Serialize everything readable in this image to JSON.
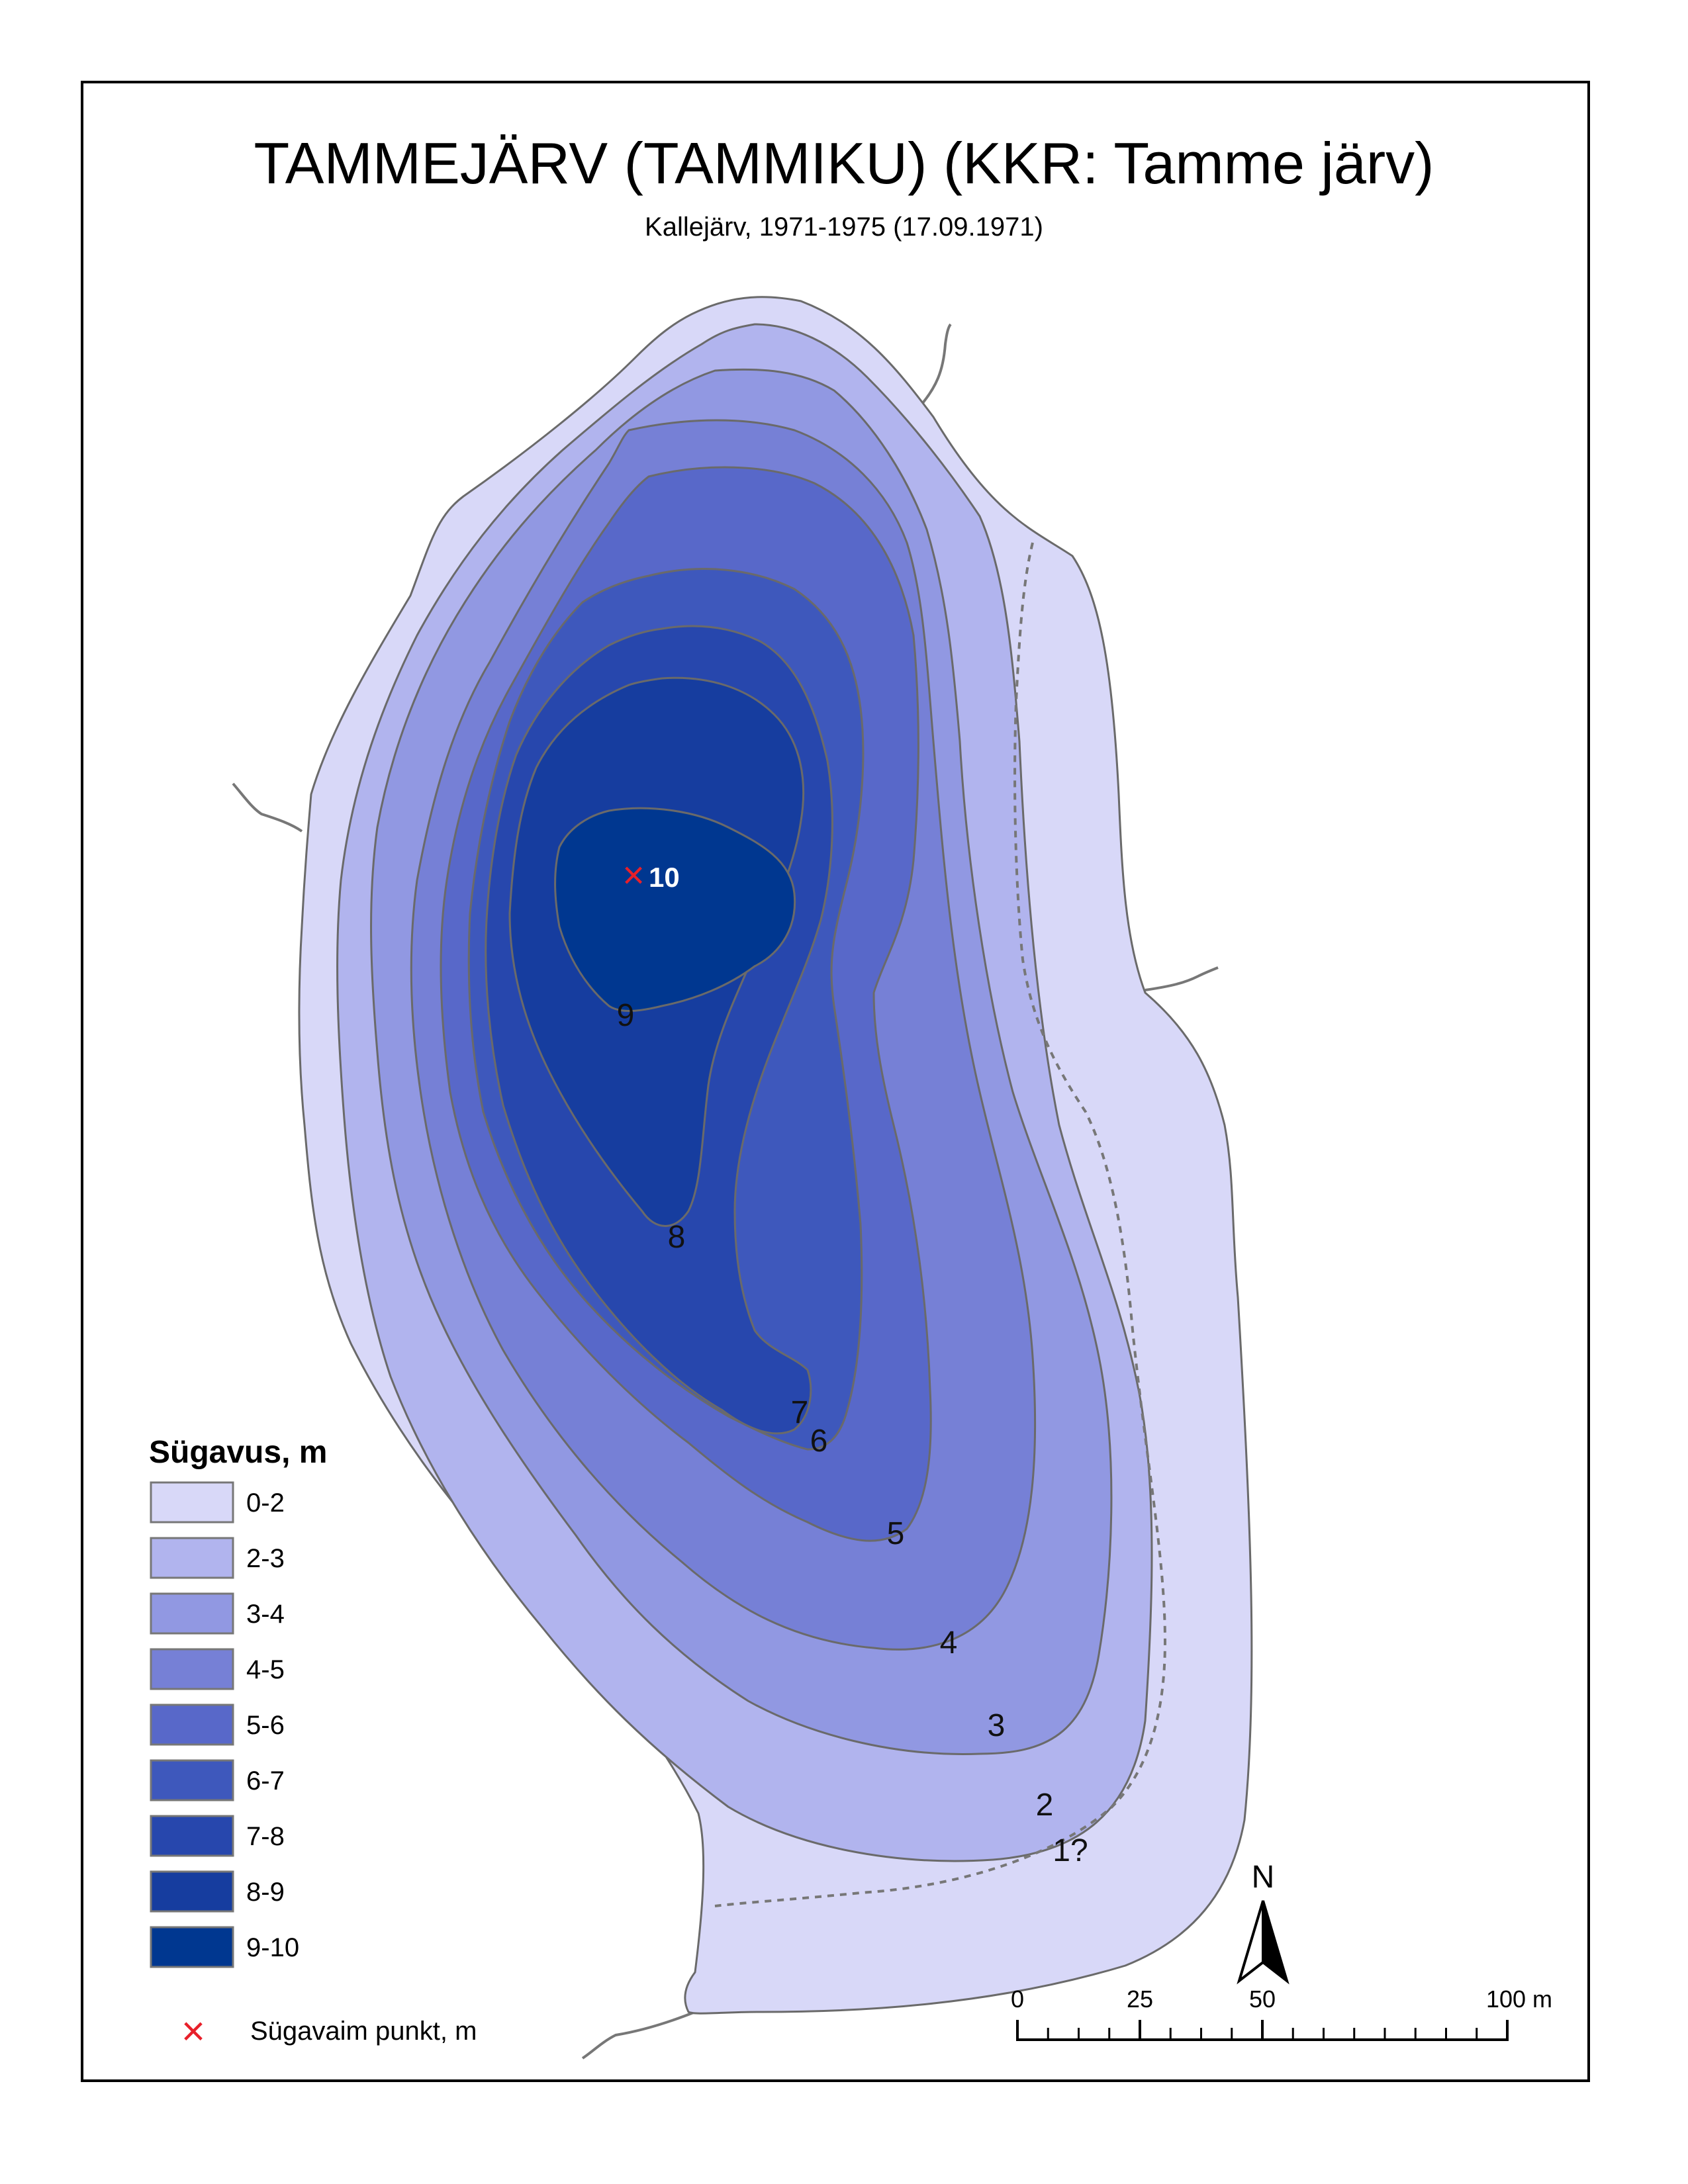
{
  "title": "TAMMEJÄRV (TAMMIKU) (KKR: Tamme järv)",
  "subtitle": "Kallejärv, 1971-1975 (17.09.1971)",
  "deepest_point": {
    "marker": "×",
    "label": "10",
    "color": "#e8202a"
  },
  "contour_labels": [
    "9",
    "8",
    "7",
    "6",
    "5",
    "4",
    "3",
    "2",
    "1?"
  ],
  "depth_classes": [
    {
      "label": "0-2",
      "color": "#d8d8f8"
    },
    {
      "label": "2-3",
      "color": "#b1b4ee"
    },
    {
      "label": "3-4",
      "color": "#9198e2"
    },
    {
      "label": "4-5",
      "color": "#7680d6"
    },
    {
      "label": "5-6",
      "color": "#5868c9"
    },
    {
      "label": "6-7",
      "color": "#3e58bc"
    },
    {
      "label": "7-8",
      "color": "#2747ad"
    },
    {
      "label": "8-9",
      "color": "#163d9f"
    },
    {
      "label": "9-10",
      "color": "#003790"
    }
  ],
  "legend": {
    "title": "Sügavus, m",
    "deepest_label": "Sügavaim punkt, m"
  },
  "north_arrow": {
    "letter": "N"
  },
  "scale_bar": {
    "ticks": [
      "0",
      "25",
      "50",
      "100 m"
    ]
  }
}
